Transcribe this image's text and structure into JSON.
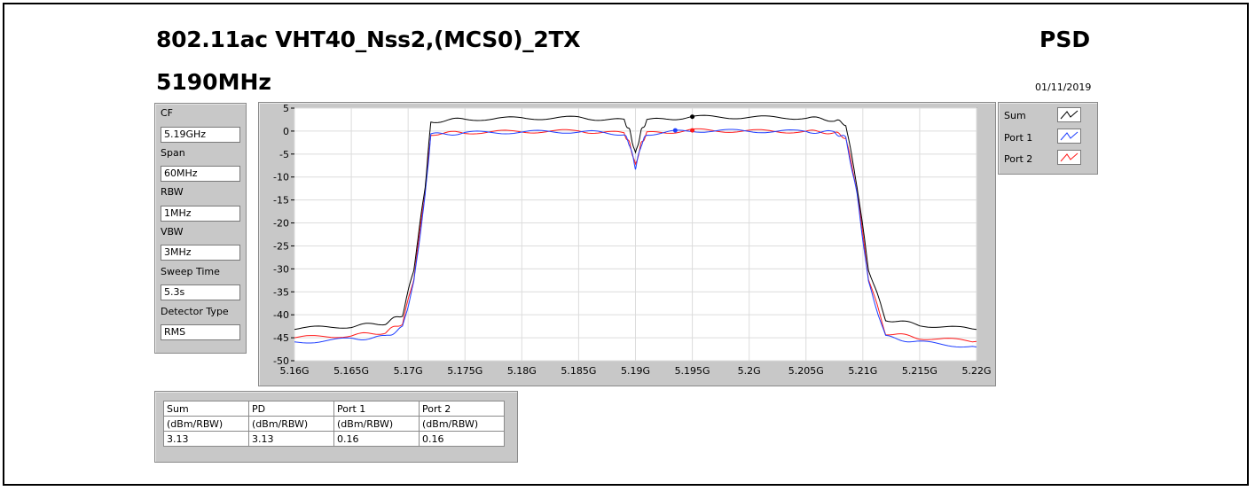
{
  "header": {
    "title": "802.11ac VHT40_Nss2,(MCS0)_2TX",
    "subtitle": "5190MHz",
    "kind": "PSD",
    "date": "01/11/2019"
  },
  "settings": [
    {
      "label": "CF",
      "value": "5.19GHz"
    },
    {
      "label": "Span",
      "value": "60MHz"
    },
    {
      "label": "RBW",
      "value": "1MHz"
    },
    {
      "label": "VBW",
      "value": "3MHz"
    },
    {
      "label": "Sweep Time",
      "value": "5.3s"
    },
    {
      "label": "Detector Type",
      "value": "RMS"
    }
  ],
  "legend": [
    {
      "name": "Sum",
      "color": "#000000"
    },
    {
      "name": "Port 1",
      "color": "#1f3fff"
    },
    {
      "name": "Port 2",
      "color": "#ff1a1a"
    }
  ],
  "results_table": {
    "headers": [
      "Sum",
      "PD",
      "Port 1",
      "Port 2"
    ],
    "units": [
      "(dBm/RBW)",
      "(dBm/RBW)",
      "(dBm/RBW)",
      "(dBm/RBW)"
    ],
    "values": [
      "3.13",
      "3.13",
      "0.16",
      "0.16"
    ]
  },
  "chart_data": {
    "type": "line",
    "xlim": [
      5.16,
      5.22
    ],
    "ylim": [
      -50,
      5
    ],
    "grid": true,
    "x_ticks": [
      "5.16G",
      "5.165G",
      "5.17G",
      "5.175G",
      "5.18G",
      "5.185G",
      "5.19G",
      "5.195G",
      "5.2G",
      "5.205G",
      "5.21G",
      "5.215G",
      "5.22G"
    ],
    "y_ticks": [
      "5",
      "0",
      "-5",
      "-10",
      "-15",
      "-20",
      "-25",
      "-30",
      "-35",
      "-40",
      "-45",
      "-50"
    ],
    "y_tick_values": [
      5,
      0,
      -5,
      -10,
      -15,
      -20,
      -25,
      -30,
      -35,
      -40,
      -45,
      -50
    ],
    "x_tick_values": [
      5.16,
      5.165,
      5.17,
      5.175,
      5.18,
      5.185,
      5.19,
      5.195,
      5.2,
      5.205,
      5.21,
      5.215,
      5.22
    ],
    "series": [
      {
        "name": "Sum",
        "color": "#000000",
        "x": [
          5.16,
          5.165,
          5.168,
          5.1695,
          5.1705,
          5.1715,
          5.172,
          5.175,
          5.18,
          5.185,
          5.189,
          5.1895,
          5.19,
          5.1905,
          5.191,
          5.195,
          5.2,
          5.205,
          5.2075,
          5.2085,
          5.2095,
          5.2105,
          5.212,
          5.215,
          5.22
        ],
        "y": [
          -43,
          -42.5,
          -41.8,
          -40,
          -30,
          -12,
          2.1,
          2.6,
          2.8,
          2.9,
          2.3,
          0,
          -5,
          0,
          2.3,
          3.1,
          3.0,
          2.9,
          2.4,
          1.5,
          -12,
          -30,
          -41,
          -42.2,
          -43.2
        ]
      },
      {
        "name": "Port 1",
        "color": "#1f3fff",
        "x": [
          5.16,
          5.165,
          5.168,
          5.1695,
          5.1705,
          5.1715,
          5.172,
          5.175,
          5.18,
          5.185,
          5.189,
          5.1895,
          5.19,
          5.1905,
          5.191,
          5.195,
          5.2,
          5.205,
          5.2075,
          5.2085,
          5.2095,
          5.2105,
          5.212,
          5.215,
          5.22
        ],
        "y": [
          -46,
          -45.3,
          -44.8,
          -42.8,
          -33,
          -14,
          -0.8,
          -0.4,
          -0.2,
          -0.1,
          -0.6,
          -3,
          -8,
          -3,
          -0.6,
          0.1,
          0,
          -0.1,
          -0.3,
          -1.5,
          -14,
          -33,
          -44.8,
          -46,
          -47
        ]
      },
      {
        "name": "Port 2",
        "color": "#ff1a1a",
        "x": [
          5.16,
          5.165,
          5.168,
          5.1695,
          5.1705,
          5.1715,
          5.172,
          5.175,
          5.18,
          5.185,
          5.189,
          5.1895,
          5.19,
          5.1905,
          5.191,
          5.195,
          5.2,
          5.205,
          5.2075,
          5.2085,
          5.2095,
          5.2105,
          5.212,
          5.215,
          5.22
        ],
        "y": [
          -45,
          -44.5,
          -43.8,
          -41.8,
          -32,
          -13,
          -0.6,
          -0.3,
          -0.1,
          0,
          -0.5,
          -2.8,
          -7.5,
          -2.8,
          -0.5,
          0.16,
          0,
          -0.1,
          -0.3,
          -1.4,
          -13,
          -32,
          -44,
          -45,
          -45.8
        ]
      }
    ],
    "markers": [
      {
        "series": "Sum",
        "x": 5.195,
        "y": 3.13
      },
      {
        "series": "Port 1",
        "x": 5.1935,
        "y": 0.16
      },
      {
        "series": "Port 2",
        "x": 5.195,
        "y": 0.16
      }
    ]
  }
}
